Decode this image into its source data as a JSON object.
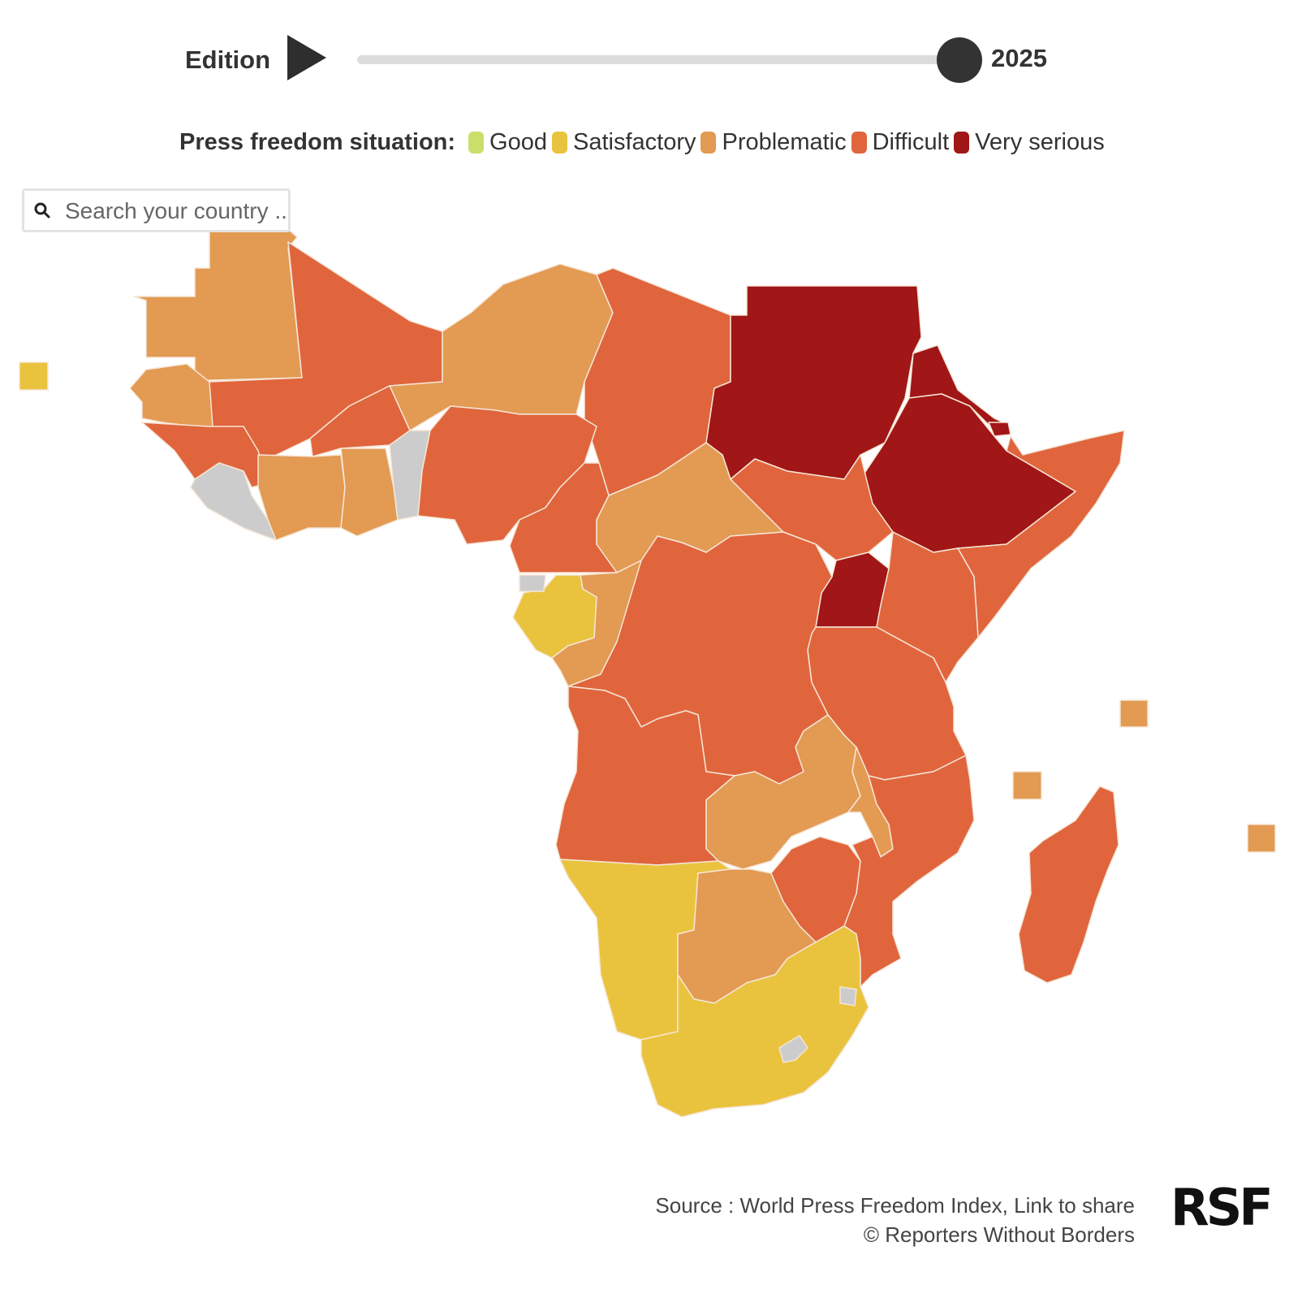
{
  "edition": {
    "label": "Edition",
    "year": "2025",
    "slider_progress": 1.0
  },
  "legend": {
    "title": "Press freedom situation:",
    "items": [
      {
        "label": "Good",
        "color": "#c8e06a"
      },
      {
        "label": "Satisfactory",
        "color": "#eac33e"
      },
      {
        "label": "Problematic",
        "color": "#e39a52"
      },
      {
        "label": "Difficult",
        "color": "#e0653d"
      },
      {
        "label": "Very serious",
        "color": "#a11616"
      }
    ]
  },
  "search": {
    "placeholder": "Search your country ..."
  },
  "map": {
    "region": "Africa",
    "countries": [
      {
        "name": "Western Sahara",
        "category": "Problematic"
      },
      {
        "name": "Mauritania",
        "category": "Problematic"
      },
      {
        "name": "Mali",
        "category": "Difficult"
      },
      {
        "name": "Niger",
        "category": "Problematic"
      },
      {
        "name": "Chad",
        "category": "Difficult"
      },
      {
        "name": "Sudan",
        "category": "Very serious"
      },
      {
        "name": "Eritrea",
        "category": "Very serious"
      },
      {
        "name": "Ethiopia",
        "category": "Very serious"
      },
      {
        "name": "Djibouti",
        "category": "Very serious"
      },
      {
        "name": "Somalia",
        "category": "Difficult"
      },
      {
        "name": "Senegal",
        "category": "Problematic"
      },
      {
        "name": "Guinea",
        "category": "Difficult"
      },
      {
        "name": "Burkina Faso",
        "category": "Difficult"
      },
      {
        "name": "Ivory Coast",
        "category": "Problematic"
      },
      {
        "name": "Ghana",
        "category": "Problematic"
      },
      {
        "name": "Nigeria",
        "category": "Difficult"
      },
      {
        "name": "Cameroon",
        "category": "Difficult"
      },
      {
        "name": "Central African Republic",
        "category": "Problematic"
      },
      {
        "name": "South Sudan",
        "category": "Difficult"
      },
      {
        "name": "Uganda",
        "category": "Very serious"
      },
      {
        "name": "Kenya",
        "category": "Difficult"
      },
      {
        "name": "Gabon",
        "category": "Satisfactory"
      },
      {
        "name": "Congo",
        "category": "Problematic"
      },
      {
        "name": "DR Congo",
        "category": "Difficult"
      },
      {
        "name": "Tanzania",
        "category": "Difficult"
      },
      {
        "name": "Angola",
        "category": "Difficult"
      },
      {
        "name": "Zambia",
        "category": "Problematic"
      },
      {
        "name": "Malawi",
        "category": "Problematic"
      },
      {
        "name": "Mozambique",
        "category": "Difficult"
      },
      {
        "name": "Zimbabwe",
        "category": "Difficult"
      },
      {
        "name": "Namibia",
        "category": "Satisfactory"
      },
      {
        "name": "Botswana",
        "category": "Problematic"
      },
      {
        "name": "South Africa",
        "category": "Satisfactory"
      },
      {
        "name": "Madagascar",
        "category": "Difficult"
      },
      {
        "name": "Cape Verde",
        "category": "Satisfactory"
      },
      {
        "name": "Seychelles",
        "category": "Problematic"
      },
      {
        "name": "Comoros",
        "category": "Problematic"
      },
      {
        "name": "Mauritius",
        "category": "Problematic"
      }
    ]
  },
  "footer": {
    "source_prefix": "Source : ",
    "source_link": "World Press Freedom Index",
    "separator": ", ",
    "share_link": "Link to share",
    "copyright": "© Reporters Without Borders",
    "logo": "RSF"
  }
}
